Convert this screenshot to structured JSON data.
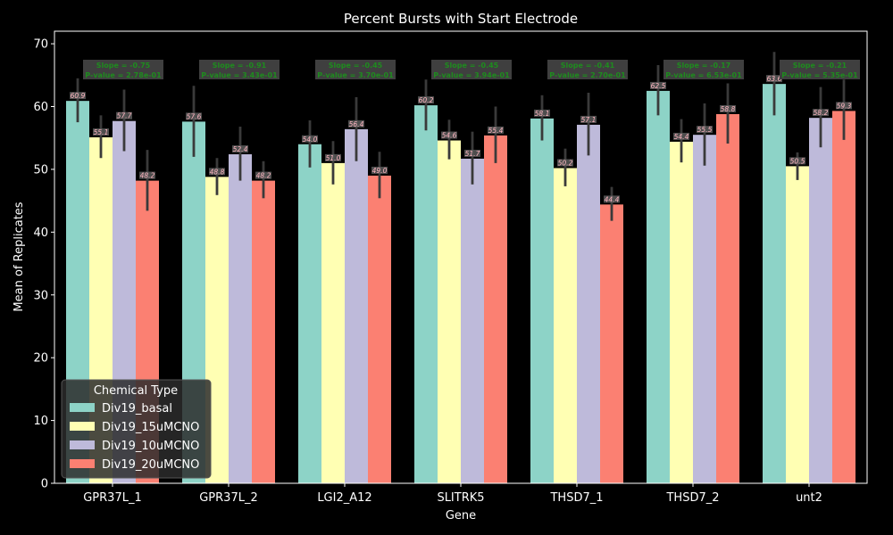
{
  "chart_data": {
    "type": "bar",
    "title": "Percent Bursts with Start Electrode",
    "xlabel": "Gene",
    "ylabel": "Mean of Replicates",
    "ylim": [
      0,
      72
    ],
    "yticks": [
      0,
      10,
      20,
      30,
      40,
      50,
      60,
      70
    ],
    "grid": false,
    "categories": [
      "GPR37L_1",
      "GPR37L_2",
      "LGI2_A12",
      "SLITRK5",
      "THSD7_1",
      "THSD7_2",
      "unt2"
    ],
    "series": [
      {
        "name": "Div19_basal",
        "color": "#8dd3c7",
        "values": [
          60.9,
          57.6,
          54.0,
          60.2,
          58.1,
          62.5,
          63.6
        ],
        "ci_low": [
          57.5,
          52.0,
          50.3,
          56.2,
          54.6,
          58.6,
          58.6
        ],
        "ci_high": [
          64.5,
          63.3,
          57.8,
          64.3,
          61.8,
          66.6,
          68.7
        ]
      },
      {
        "name": "Div19_15uMCNO",
        "color": "#ffffb3",
        "values": [
          55.1,
          48.8,
          51.0,
          54.6,
          50.2,
          54.4,
          50.5
        ],
        "ci_low": [
          51.8,
          45.9,
          47.6,
          51.6,
          47.3,
          51.1,
          48.3
        ],
        "ci_high": [
          58.6,
          51.8,
          54.5,
          57.9,
          53.3,
          58.0,
          52.7
        ]
      },
      {
        "name": "Div19_10uMCNO",
        "color": "#bebada",
        "values": [
          57.7,
          52.4,
          56.4,
          51.7,
          57.1,
          55.5,
          58.2
        ],
        "ci_low": [
          52.9,
          48.2,
          51.3,
          47.6,
          52.2,
          50.6,
          53.5
        ],
        "ci_high": [
          62.7,
          56.8,
          61.5,
          56.0,
          62.2,
          60.5,
          63.1
        ]
      },
      {
        "name": "Div19_20uMCNO",
        "color": "#fb8072",
        "values": [
          48.2,
          48.2,
          49.0,
          55.4,
          44.4,
          58.8,
          59.3
        ],
        "ci_low": [
          43.4,
          45.4,
          45.4,
          51.0,
          41.8,
          54.1,
          54.7
        ],
        "ci_high": [
          53.1,
          51.3,
          52.8,
          60.0,
          47.2,
          63.7,
          64.3
        ]
      }
    ],
    "annotations": [
      {
        "slope": "Slope = -0.75",
        "pvalue": "P-value = 2.78e-01"
      },
      {
        "slope": "Slope = -0.91",
        "pvalue": "P-value = 3.43e-01"
      },
      {
        "slope": "Slope = -0.45",
        "pvalue": "P-value = 3.70e-01"
      },
      {
        "slope": "Slope = -0.45",
        "pvalue": "P-value = 3.94e-01"
      },
      {
        "slope": "Slope = -0.41",
        "pvalue": "P-value = 2.70e-01"
      },
      {
        "slope": "Slope = -0.17",
        "pvalue": "P-value = 6.53e-01"
      },
      {
        "slope": "Slope = -0.21",
        "pvalue": "P-value = 5.35e-01"
      }
    ],
    "legend": {
      "title": "Chemical Type",
      "placement": "lower-left"
    },
    "colors": {
      "background": "#000000",
      "axis": "#ffffff",
      "annotation_text": "#1e8c1e",
      "annotation_box": "#3f3f3f",
      "value_label_text": "#ffb6c1",
      "value_label_box": "#5a5a5a",
      "errorbar": "#3a3a3a"
    }
  }
}
